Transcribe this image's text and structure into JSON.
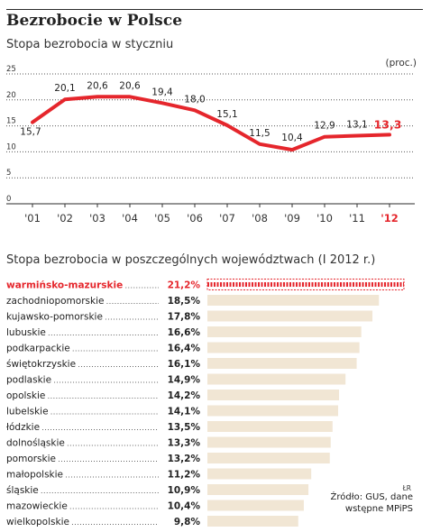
{
  "header": {
    "title": "Bezrobocie w Polsce",
    "subtitle": "Stopa bezrobocia w styczniu",
    "unit": "(proc.)"
  },
  "colors": {
    "accent": "#e5262c",
    "bar": "#f1e6d4",
    "text": "#222222",
    "grid": "#555555"
  },
  "chart_data": [
    {
      "type": "line",
      "title": "Stopa bezrobocia w styczniu",
      "ylabel": "(proc.)",
      "x": [
        "'01",
        "'02",
        "'03",
        "'04",
        "'05",
        "'06",
        "'07",
        "'08",
        "'09",
        "'10",
        "'11",
        "'12"
      ],
      "series": [
        {
          "values": [
            15.7,
            20.1,
            20.6,
            20.6,
            19.4,
            18.0,
            15.1,
            11.5,
            10.4,
            12.9,
            13.1,
            13.3
          ]
        }
      ],
      "value_labels": [
        "15,7",
        "20,1",
        "20,6",
        "20,6",
        "19,4",
        "18,0",
        "15,1",
        "11,5",
        "10,4",
        "12,9",
        "13,1",
        "13,3"
      ],
      "yticks": [
        0,
        5,
        10,
        15,
        20,
        25
      ],
      "ylim": [
        0,
        25
      ],
      "grid": "dotted horizontal",
      "highlight_last": true
    },
    {
      "type": "bar",
      "title": "Stopa bezrobocia w poszczególnych województwach (I 2012 r.)",
      "orientation": "horizontal",
      "categories": [
        "warmińsko-mazurskie",
        "zachodniopomorskie",
        "kujawsko-pomorskie",
        "lubuskie",
        "podkarpackie",
        "świętokrzyskie",
        "podlaskie",
        "opolskie",
        "lubelskie",
        "łódzkie",
        "dolnośląskie",
        "pomorskie",
        "małopolskie",
        "śląskie",
        "mazowieckie",
        "wielkopolskie"
      ],
      "values": [
        21.2,
        18.5,
        17.8,
        16.6,
        16.4,
        16.1,
        14.9,
        14.2,
        14.1,
        13.5,
        13.3,
        13.2,
        11.2,
        10.9,
        10.4,
        9.8
      ],
      "value_labels": [
        "21,2%",
        "18,5%",
        "17,8%",
        "16,6%",
        "16,4%",
        "16,1%",
        "14,9%",
        "14,2%",
        "14,1%",
        "13,5%",
        "13,3%",
        "13,2%",
        "11,2%",
        "10,9%",
        "10,4%",
        "9,8%"
      ],
      "highlight_index": 0
    }
  ],
  "footer": {
    "author": "ŁR",
    "source_line1": "Źródło: GUS, dane",
    "source_line2": "wstępne MPiPS"
  }
}
